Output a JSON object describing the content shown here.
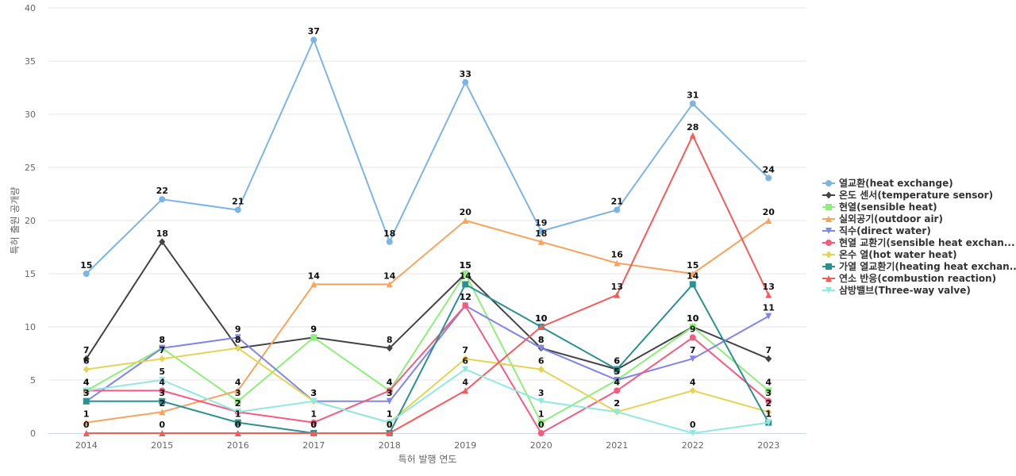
{
  "chart_data": {
    "type": "line",
    "title": "",
    "xlabel": "특허 발행 연도",
    "ylabel": "특허 출원 공개량",
    "ylim": [
      0,
      40
    ],
    "yticks": [
      0,
      5,
      10,
      15,
      20,
      25,
      30,
      35,
      40
    ],
    "grid": true,
    "legend_position": "right",
    "categories": [
      "2014",
      "2015",
      "2016",
      "2017",
      "2018",
      "2019",
      "2020",
      "2021",
      "2022",
      "2023"
    ],
    "series": [
      {
        "name": "열교환(heat exchange)",
        "color": "#7cb5e4",
        "marker": "circle",
        "values": [
          15,
          22,
          21,
          37,
          18,
          33,
          19,
          21,
          31,
          24
        ]
      },
      {
        "name": "온도 센서(temperature sensor)",
        "color": "#434348",
        "marker": "diamond",
        "values": [
          7,
          18,
          8,
          9,
          8,
          15,
          8,
          6,
          10,
          7
        ]
      },
      {
        "name": "현열(sensible heat)",
        "color": "#90ed7d",
        "marker": "square",
        "values": [
          4,
          8,
          3,
          9,
          4,
          15,
          1,
          5,
          10,
          4
        ]
      },
      {
        "name": "실외공기(outdoor air)",
        "color": "#f7a35c",
        "marker": "triangle",
        "values": [
          1,
          2,
          4,
          14,
          14,
          20,
          18,
          16,
          15,
          20
        ]
      },
      {
        "name": "직수(direct water)",
        "color": "#8085e9",
        "marker": "triangle-down",
        "values": [
          3,
          8,
          9,
          3,
          3,
          12,
          8,
          5,
          7,
          11
        ]
      },
      {
        "name": "현열 교환기(sensible heat exchan...",
        "color": "#f15c80",
        "marker": "circle",
        "values": [
          4,
          4,
          2,
          1,
          4,
          12,
          0,
          4,
          9,
          3
        ]
      },
      {
        "name": "온수 열(hot water heat)",
        "color": "#e4d354",
        "marker": "diamond",
        "values": [
          6,
          7,
          8,
          3,
          1,
          7,
          6,
          2,
          4,
          2
        ]
      },
      {
        "name": "가열 열교환기(heating heat exchan...",
        "color": "#2b908f",
        "marker": "square",
        "values": [
          3,
          3,
          1,
          0,
          0,
          14,
          10,
          6,
          14,
          1
        ]
      },
      {
        "name": "연소 반응(combustion reaction)",
        "color": "#f45b5b",
        "marker": "triangle",
        "values": [
          0,
          0,
          0,
          0,
          0,
          4,
          10,
          13,
          28,
          13
        ]
      },
      {
        "name": "삼방밸브(Three-way valve)",
        "color": "#91e8e1",
        "marker": "triangle-down",
        "values": [
          4,
          5,
          2,
          3,
          1,
          6,
          3,
          2,
          0,
          1
        ]
      }
    ]
  }
}
